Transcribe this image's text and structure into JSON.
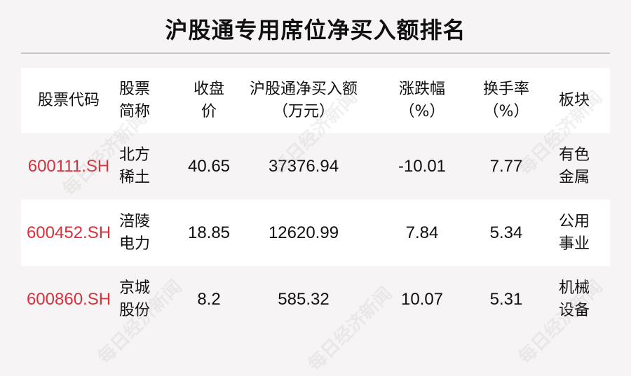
{
  "title": "沪股通专用席位净买入额排名",
  "watermark": "每日经济新闻",
  "colors": {
    "code": "#d7323b",
    "background": "#f7f4f5"
  },
  "headers": [
    [
      "股票代码"
    ],
    [
      "股票",
      "简称"
    ],
    [
      "收盘",
      "价"
    ],
    [
      "沪股通净买入额",
      "（万元）"
    ],
    [
      "涨跌幅",
      "（%）"
    ],
    [
      "换手率",
      "（%）"
    ],
    [
      "板块"
    ]
  ],
  "rows": [
    {
      "code": "600111.SH",
      "name": [
        "北方",
        "稀土"
      ],
      "close": "40.65",
      "net_buy": "37376.94",
      "change": "-10.01",
      "turnover": "7.77",
      "sector": [
        "有色",
        "金属"
      ]
    },
    {
      "code": "600452.SH",
      "name": [
        "涪陵",
        "电力"
      ],
      "close": "18.85",
      "net_buy": "12620.99",
      "change": "7.84",
      "turnover": "5.34",
      "sector": [
        "公用",
        "事业"
      ]
    },
    {
      "code": "600860.SH",
      "name": [
        "京城",
        "股份"
      ],
      "close": "8.2",
      "net_buy": "585.32",
      "change": "10.07",
      "turnover": "5.31",
      "sector": [
        "机械",
        "设备"
      ]
    }
  ]
}
